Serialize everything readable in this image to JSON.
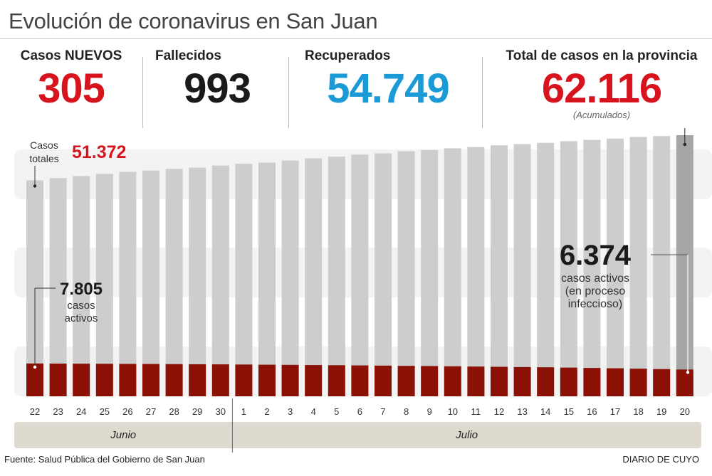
{
  "title": "Evolución de coronavirus en San Juan",
  "stats": {
    "nuevos": {
      "label": "Casos NUEVOS",
      "value": "305"
    },
    "fallecidos": {
      "label": "Fallecidos",
      "value": "993"
    },
    "recuperados": {
      "label": "Recuperados",
      "value": "54.749"
    },
    "total": {
      "label": "Total de casos en la provincia",
      "value": "62.116",
      "note": "(Acumulados)"
    }
  },
  "colors": {
    "red": "#d7141e",
    "blue": "#1a9ad6",
    "active_bar": "#8b1106",
    "total_bar": "#cdcdcd",
    "last_total_bar": "#a6a6a6",
    "month_band": "#dedad0"
  },
  "chart_data": {
    "type": "bar",
    "categories": [
      "22",
      "23",
      "24",
      "25",
      "26",
      "27",
      "28",
      "29",
      "30",
      "1",
      "2",
      "3",
      "4",
      "5",
      "6",
      "7",
      "8",
      "9",
      "10",
      "11",
      "12",
      "13",
      "14",
      "15",
      "16",
      "17",
      "18",
      "19",
      "20"
    ],
    "months": [
      {
        "label": "Junio",
        "from": "22",
        "to": "30"
      },
      {
        "label": "Julio",
        "from": "1",
        "to": "20"
      }
    ],
    "series": [
      {
        "name": "Casos totales",
        "values": [
          51372,
          51900,
          52400,
          52900,
          53400,
          53700,
          54100,
          54400,
          54900,
          55300,
          55600,
          56100,
          56600,
          57000,
          57500,
          57800,
          58300,
          58600,
          59000,
          59300,
          59700,
          60000,
          60300,
          60700,
          61000,
          61300,
          61700,
          61900,
          62116
        ]
      },
      {
        "name": "casos activos",
        "values": [
          7805,
          7780,
          7760,
          7740,
          7710,
          7690,
          7660,
          7630,
          7600,
          7560,
          7520,
          7480,
          7440,
          7400,
          7350,
          7300,
          7250,
          7200,
          7140,
          7080,
          7020,
          6960,
          6900,
          6830,
          6750,
          6670,
          6580,
          6480,
          6374
        ]
      }
    ],
    "ylim": [
      0,
      62116
    ],
    "annotations": {
      "first_total_label": "Casos totales",
      "first_total_value": "51.372",
      "first_active_value": "7.805",
      "first_active_label": "casos activos",
      "last_active_value": "6.374",
      "last_active_label": "casos activos (en proceso infeccioso)"
    }
  },
  "footer": {
    "source": "Fuente: Salud Pública del Gobierno de San Juan",
    "brand": "DIARIO DE CUYO"
  }
}
